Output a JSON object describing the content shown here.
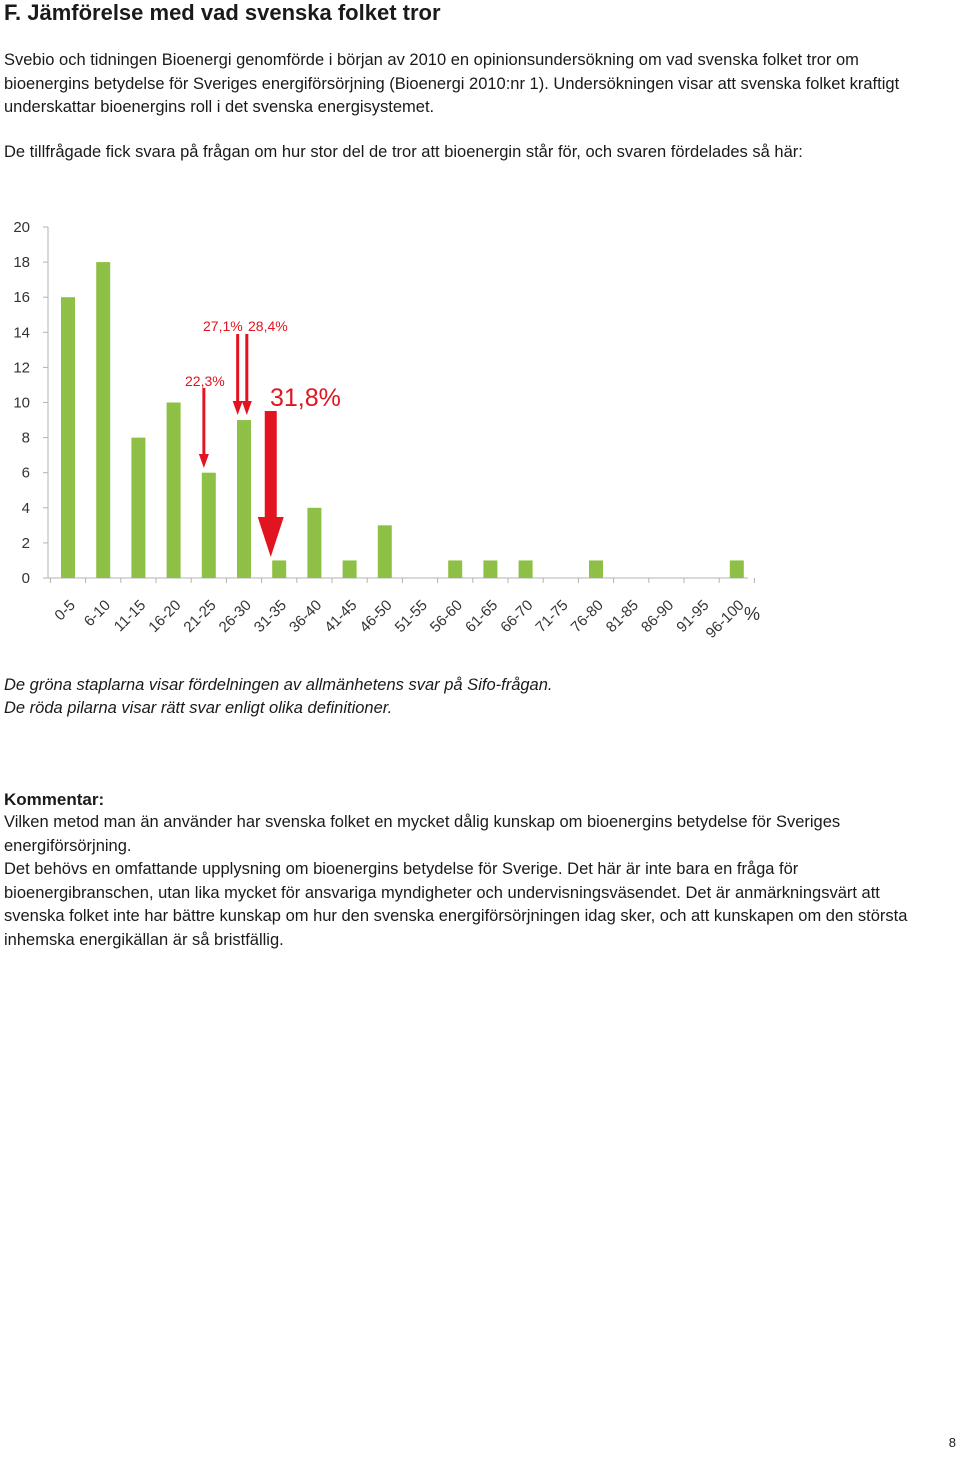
{
  "page": {
    "title": "F. Jämförelse med vad svenska folket tror",
    "intro": "Svebio och tidningen Bioenergi genomförde i början av 2010 en opinionsundersökning om vad svenska folket tror om bioenergins betydelse för Sveriges energiförsörjning (Bioenergi 2010:nr 1). Undersökningen visar att svenska folket kraftigt underskattar bioenergins roll i det svenska energisystemet.",
    "question": "De tillfrågade fick svara på frågan om hur stor del de tror att bioenergin står för, och svaren fördelades så här:",
    "note1": "De gröna staplarna visar fördelningen av allmänhetens svar på Sifo-frågan.",
    "note2": "De röda pilarna visar rätt svar enligt olika definitioner.",
    "comment_heading": "Kommentar:",
    "comment_p1": "Vilken metod man än använder har svenska folket en mycket dålig kunskap om bioenergins betydelse för Sveriges energiförsörjning.",
    "comment_p2": "Det behövs en omfattande upplysning om bioenergins betydelse för Sverige. Det här är inte bara en fråga för bioenergibranschen, utan lika mycket för ansvariga myndigheter och undervisningsväsendet. Det är anmärkningsvärt att svenska folket inte har bättre kunskap om hur den svenska energiförsörjningen idag sker, och att kunskapen om den största inhemska energikällan är så bristfällig.",
    "page_number": "8"
  },
  "chart_data": {
    "type": "bar",
    "categories": [
      "0-5",
      "6-10",
      "11-15",
      "16-20",
      "21-25",
      "26-30",
      "31-35",
      "36-40",
      "41-45",
      "46-50",
      "51-55",
      "56-60",
      "61-65",
      "66-70",
      "71-75",
      "76-80",
      "81-85",
      "86-90",
      "91-95",
      "96-100"
    ],
    "values": [
      16,
      18,
      8,
      10,
      6,
      9,
      1,
      4,
      1,
      3,
      0,
      1,
      1,
      1,
      0,
      1,
      0,
      0,
      0,
      1
    ],
    "x_unit": "%",
    "ylim": [
      0,
      20
    ],
    "yticks": [
      0,
      2,
      4,
      6,
      8,
      10,
      12,
      14,
      16,
      18,
      20
    ],
    "bar_color": "#8dc044",
    "arrow_color": "#e2141f",
    "annotations": [
      {
        "label": "22,3%",
        "value": 22.3
      },
      {
        "label": "27,1%",
        "value": 27.1
      },
      {
        "label": "28,4%",
        "value": 28.4
      },
      {
        "label": "31,8%",
        "value": 31.8
      }
    ]
  }
}
